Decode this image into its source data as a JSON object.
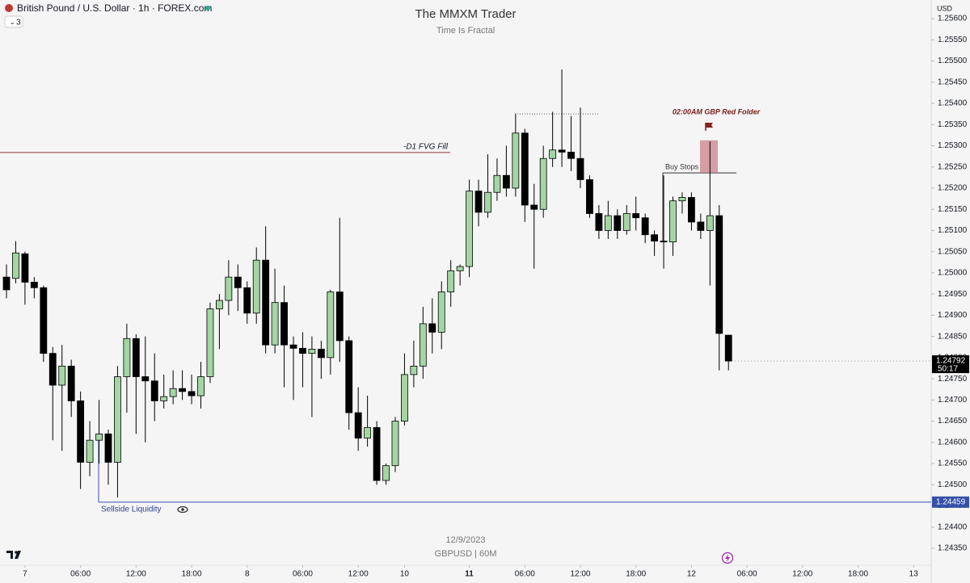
{
  "header": {
    "symbol": "British Pound / U.S. Dollar · 1h · FOREX.com",
    "interval_count": "3",
    "currency": "USD"
  },
  "chart_data": {
    "type": "candlestick",
    "title": "The MMXM Trader",
    "subtitle": "Time Is Fractal",
    "footer_date": "12/9/2023",
    "footer_symbol": "GBPUSD | 60M",
    "open": [
      1.2499,
      1.24987,
      1.25045,
      1.24978,
      1.24965,
      1.2481,
      1.24735,
      1.2478,
      1.24698,
      1.24553,
      1.24605,
      1.2462,
      1.24553,
      1.24755,
      1.24845,
      1.24755,
      1.24745,
      1.24698,
      1.24708,
      1.24727,
      1.2472,
      1.2471,
      1.24755,
      1.24915,
      1.24935,
      1.2499,
      1.24965,
      1.24905,
      1.2503,
      1.2483,
      1.2493,
      1.2483,
      1.24822,
      1.2481,
      1.2482,
      1.248,
      1.24955,
      1.2484,
      1.2467,
      1.2461,
      1.24635,
      1.2451,
      1.24545,
      1.2465,
      1.2476,
      1.2478,
      1.2488,
      1.2486,
      1.24955,
      1.25005,
      1.25015,
      1.25193,
      1.25143,
      1.2519,
      1.2523,
      1.252,
      1.2533,
      1.2516,
      1.2515,
      1.2527,
      1.2529,
      1.25285,
      1.2527,
      1.2522,
      1.2514,
      1.251,
      1.25135,
      1.251,
      1.2514,
      1.2513,
      1.2509,
      1.25075,
      1.25073,
      1.2517,
      1.25178,
      1.2512,
      1.251,
      1.25135,
      1.24853
    ],
    "high": [
      1.2502,
      1.25075,
      1.2505,
      1.2499,
      1.2497,
      1.24825,
      1.2483,
      1.24795,
      1.2472,
      1.2465,
      1.247,
      1.2463,
      1.2478,
      1.2488,
      1.24855,
      1.2485,
      1.2481,
      1.2476,
      1.2477,
      1.2477,
      1.2476,
      1.2479,
      1.2493,
      1.2495,
      1.2503,
      1.2502,
      1.2498,
      1.2506,
      1.2511,
      1.2501,
      1.2497,
      1.2485,
      1.2486,
      1.2485,
      1.2484,
      1.2496,
      1.2513,
      1.2485,
      1.2473,
      1.2471,
      1.2465,
      1.2455,
      1.2466,
      1.2481,
      1.2484,
      1.2492,
      1.2494,
      1.2498,
      1.2503,
      1.2502,
      1.2522,
      1.2522,
      1.2528,
      1.2527,
      1.253,
      1.25375,
      1.2534,
      1.2521,
      1.253,
      1.2538,
      1.2548,
      1.2537,
      1.2539,
      1.2523,
      1.2516,
      1.2517,
      1.2515,
      1.2516,
      1.2518,
      1.2514,
      1.251,
      1.2523,
      1.2518,
      1.2519,
      1.2519,
      1.2514,
      1.2531,
      1.2516,
      1.24853
    ],
    "low": [
      1.2494,
      1.24975,
      1.24925,
      1.2494,
      1.2479,
      1.24605,
      1.2458,
      1.2466,
      1.2449,
      1.2452,
      1.2455,
      1.245,
      1.2447,
      1.2467,
      1.2462,
      1.246,
      1.2465,
      1.2468,
      1.2469,
      1.247,
      1.2469,
      1.2468,
      1.2474,
      1.2482,
      1.249,
      1.2491,
      1.2488,
      1.2488,
      1.2481,
      1.2481,
      1.2473,
      1.247,
      1.2473,
      1.2466,
      1.2475,
      1.2476,
      1.2479,
      1.2463,
      1.2458,
      1.2459,
      1.245,
      1.245,
      1.2453,
      1.2464,
      1.2473,
      1.2475,
      1.2481,
      1.2482,
      1.2492,
      1.2497,
      1.2499,
      1.2511,
      1.2513,
      1.2517,
      1.2518,
      1.2518,
      1.2512,
      1.2501,
      1.2513,
      1.2525,
      1.2525,
      1.2524,
      1.252,
      1.2513,
      1.2508,
      1.2508,
      1.2508,
      1.2509,
      1.251,
      1.2507,
      1.2504,
      1.2501,
      1.2504,
      1.2514,
      1.251,
      1.2508,
      1.2497,
      1.2477,
      1.2477
    ],
    "close": [
      1.2496,
      1.25047,
      1.24978,
      1.24965,
      1.2481,
      1.24735,
      1.2478,
      1.24698,
      1.24553,
      1.24605,
      1.2462,
      1.24553,
      1.24755,
      1.24845,
      1.24755,
      1.24745,
      1.24698,
      1.24708,
      1.24727,
      1.2472,
      1.2471,
      1.24755,
      1.24915,
      1.24935,
      1.2499,
      1.24965,
      1.24905,
      1.2503,
      1.2483,
      1.2493,
      1.2483,
      1.24822,
      1.2481,
      1.2482,
      1.248,
      1.24955,
      1.2484,
      1.2467,
      1.2461,
      1.24635,
      1.2451,
      1.24545,
      1.2465,
      1.2476,
      1.2478,
      1.2488,
      1.2486,
      1.24955,
      1.25005,
      1.25015,
      1.25193,
      1.25143,
      1.2519,
      1.2523,
      1.252,
      1.2533,
      1.2516,
      1.2515,
      1.2527,
      1.2529,
      1.25285,
      1.2527,
      1.2522,
      1.2514,
      1.251,
      1.25135,
      1.251,
      1.2514,
      1.2513,
      1.2509,
      1.25075,
      1.25073,
      1.2517,
      1.25178,
      1.2512,
      1.251,
      1.25135,
      1.24857,
      1.24792
    ],
    "up_color": "#a3d6a3",
    "down_color": "#000000",
    "xlim": [
      -0.7,
      99.9
    ],
    "xticks": [
      {
        "value": 2,
        "label": "7"
      },
      {
        "value": 8,
        "label": "06:00"
      },
      {
        "value": 14,
        "label": "12:00"
      },
      {
        "value": 20,
        "label": "18:00"
      },
      {
        "value": 26,
        "label": "8"
      },
      {
        "value": 32,
        "label": "06:00"
      },
      {
        "value": 38,
        "label": "12:00"
      },
      {
        "value": 43,
        "label": "10"
      },
      {
        "value": 50,
        "label": "11"
      },
      {
        "value": 56,
        "label": "06:00"
      },
      {
        "value": 62,
        "label": "12:00"
      },
      {
        "value": 68,
        "label": "18:00"
      },
      {
        "value": 74,
        "label": "12"
      },
      {
        "value": 80,
        "label": "06:00"
      },
      {
        "value": 86,
        "label": "12:00"
      },
      {
        "value": 92,
        "label": "18:00"
      },
      {
        "value": 98,
        "label": "13"
      }
    ],
    "ylim": [
      1.2431,
      1.25644
    ],
    "yticks": [
      {
        "value": 1.2435,
        "label": "1.24350"
      },
      {
        "value": 1.244,
        "label": "1.24400"
      },
      {
        "value": 1.2445,
        "label": "1.24450"
      },
      {
        "value": 1.245,
        "label": "1.24500"
      },
      {
        "value": 1.2455,
        "label": "1.24550"
      },
      {
        "value": 1.246,
        "label": "1.24600"
      },
      {
        "value": 1.2465,
        "label": "1.24650"
      },
      {
        "value": 1.247,
        "label": "1.24700"
      },
      {
        "value": 1.2475,
        "label": "1.24750"
      },
      {
        "value": 1.248,
        "label": "1.24800"
      },
      {
        "value": 1.2485,
        "label": "1.24850"
      },
      {
        "value": 1.249,
        "label": "1.24900"
      },
      {
        "value": 1.2495,
        "label": "1.24950"
      },
      {
        "value": 1.25,
        "label": "1.25000"
      },
      {
        "value": 1.2505,
        "label": "1.25050"
      },
      {
        "value": 1.251,
        "label": "1.25100"
      },
      {
        "value": 1.2515,
        "label": "1.25150"
      },
      {
        "value": 1.252,
        "label": "1.25200"
      },
      {
        "value": 1.2525,
        "label": "1.25250"
      },
      {
        "value": 1.253,
        "label": "1.25300"
      },
      {
        "value": 1.2535,
        "label": "1.25350"
      },
      {
        "value": 1.254,
        "label": "1.25400"
      },
      {
        "value": 1.2545,
        "label": "1.25450"
      },
      {
        "value": 1.255,
        "label": "1.25500"
      },
      {
        "value": 1.2555,
        "label": "1.25550"
      },
      {
        "value": 1.256,
        "label": "1.25600"
      }
    ],
    "last_price": {
      "value": 1.24792,
      "label": "1.24792"
    },
    "countdown": "50:17",
    "annotations": [
      {
        "label": "-D1 FVG Fill",
        "value": 1.25284
      },
      {
        "label": "Buy Stops",
        "value": 1.25236
      },
      {
        "label": "02:00AM GBP Red Folder",
        "low": 1.25236,
        "high": 1.25313
      },
      {
        "value": 1.25375
      },
      {
        "label": "Sellside Liquidity",
        "value": 1.24459,
        "value_label": "1.24459"
      }
    ]
  }
}
